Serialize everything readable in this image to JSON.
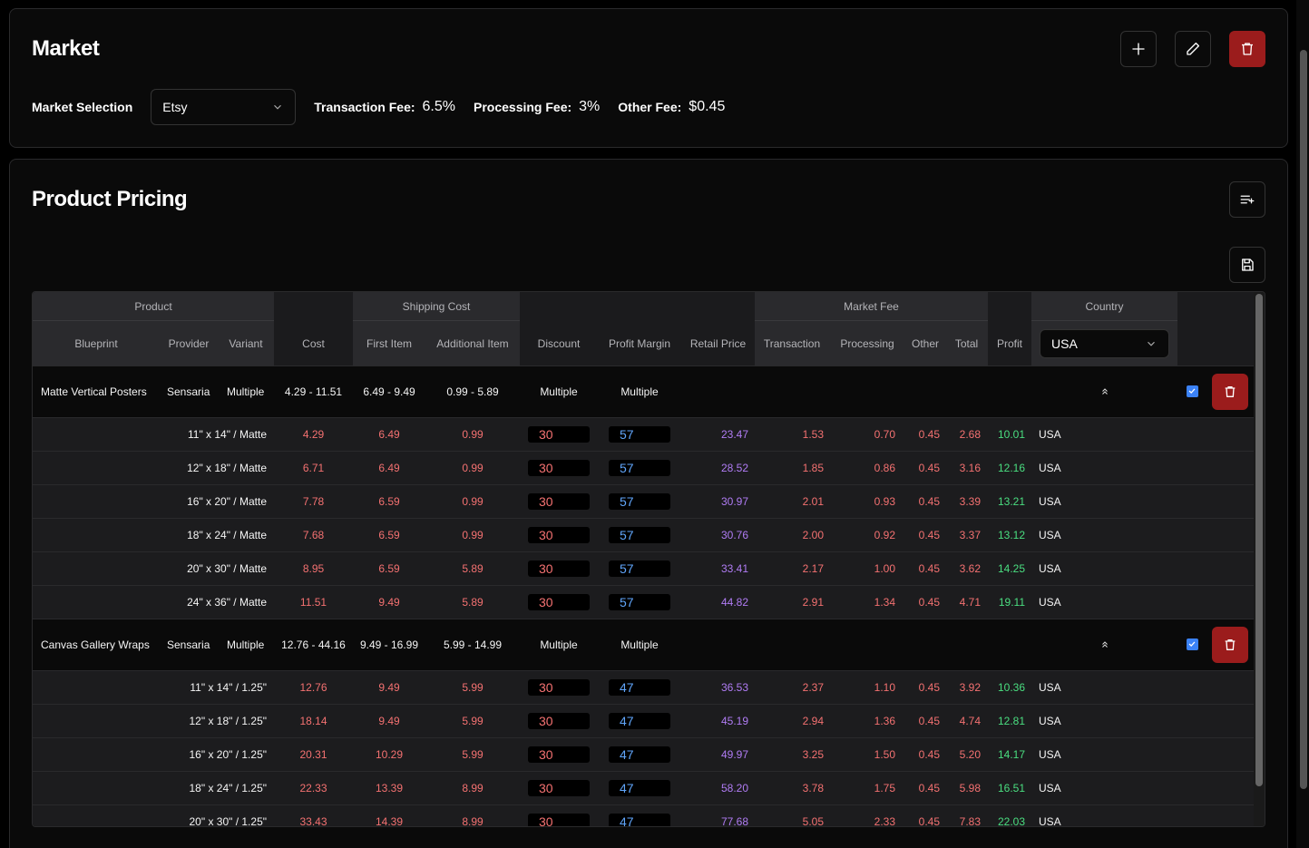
{
  "market": {
    "title": "Market",
    "selection_label": "Market Selection",
    "selection_value": "Etsy",
    "transaction_fee_label": "Transaction Fee:",
    "transaction_fee_value": "6.5%",
    "processing_fee_label": "Processing Fee:",
    "processing_fee_value": "3%",
    "other_fee_label": "Other Fee:",
    "other_fee_value": "$0.45",
    "icons": [
      "plus-icon",
      "pencil-icon",
      "trash-icon"
    ]
  },
  "pricing": {
    "title": "Product Pricing",
    "icons": [
      "list-add-icon",
      "save-icon"
    ],
    "header_groups": {
      "product": "Product",
      "shipping": "Shipping Cost",
      "market_fee": "Market Fee",
      "country": "Country"
    },
    "columns": {
      "blueprint": "Blueprint",
      "provider": "Provider",
      "variant": "Variant",
      "cost": "Cost",
      "first_item": "First Item",
      "additional_item": "Additional Item",
      "discount": "Discount",
      "profit_margin": "Profit Margin",
      "retail_price": "Retail Price",
      "transaction": "Transaction",
      "processing": "Processing",
      "other": "Other",
      "total": "Total",
      "profit": "Profit"
    },
    "country_select": "USA",
    "groups": [
      {
        "blueprint": "Matte Vertical Posters",
        "provider": "Sensaria",
        "variant": "Multiple",
        "cost": "4.29 - 11.51",
        "first_item": "6.49 - 9.49",
        "additional_item": "0.99 - 5.89",
        "discount": "Multiple",
        "profit_margin": "Multiple",
        "checked": true,
        "rows": [
          {
            "variant": "11\" x 14\" / Matte",
            "cost": "4.29",
            "first": "6.49",
            "additional": "0.99",
            "discount": "30",
            "margin": "57",
            "retail": "23.47",
            "transaction": "1.53",
            "processing": "0.70",
            "other": "0.45",
            "total": "2.68",
            "profit": "10.01",
            "country": "USA"
          },
          {
            "variant": "12\" x 18\" / Matte",
            "cost": "6.71",
            "first": "6.49",
            "additional": "0.99",
            "discount": "30",
            "margin": "57",
            "retail": "28.52",
            "transaction": "1.85",
            "processing": "0.86",
            "other": "0.45",
            "total": "3.16",
            "profit": "12.16",
            "country": "USA"
          },
          {
            "variant": "16\" x 20\" / Matte",
            "cost": "7.78",
            "first": "6.59",
            "additional": "0.99",
            "discount": "30",
            "margin": "57",
            "retail": "30.97",
            "transaction": "2.01",
            "processing": "0.93",
            "other": "0.45",
            "total": "3.39",
            "profit": "13.21",
            "country": "USA"
          },
          {
            "variant": "18\" x 24\" / Matte",
            "cost": "7.68",
            "first": "6.59",
            "additional": "0.99",
            "discount": "30",
            "margin": "57",
            "retail": "30.76",
            "transaction": "2.00",
            "processing": "0.92",
            "other": "0.45",
            "total": "3.37",
            "profit": "13.12",
            "country": "USA"
          },
          {
            "variant": "20\" x 30\" / Matte",
            "cost": "8.95",
            "first": "6.59",
            "additional": "5.89",
            "discount": "30",
            "margin": "57",
            "retail": "33.41",
            "transaction": "2.17",
            "processing": "1.00",
            "other": "0.45",
            "total": "3.62",
            "profit": "14.25",
            "country": "USA"
          },
          {
            "variant": "24\" x 36\" / Matte",
            "cost": "11.51",
            "first": "9.49",
            "additional": "5.89",
            "discount": "30",
            "margin": "57",
            "retail": "44.82",
            "transaction": "2.91",
            "processing": "1.34",
            "other": "0.45",
            "total": "4.71",
            "profit": "19.11",
            "country": "USA"
          }
        ]
      },
      {
        "blueprint": "Canvas Gallery Wraps",
        "provider": "Sensaria",
        "variant": "Multiple",
        "cost": "12.76 - 44.16",
        "first_item": "9.49 - 16.99",
        "additional_item": "5.99 - 14.99",
        "discount": "Multiple",
        "profit_margin": "Multiple",
        "checked": true,
        "rows": [
          {
            "variant": "11\" x 14\" / 1.25\"",
            "cost": "12.76",
            "first": "9.49",
            "additional": "5.99",
            "discount": "30",
            "margin": "47",
            "retail": "36.53",
            "transaction": "2.37",
            "processing": "1.10",
            "other": "0.45",
            "total": "3.92",
            "profit": "10.36",
            "country": "USA"
          },
          {
            "variant": "12\" x 18\" / 1.25\"",
            "cost": "18.14",
            "first": "9.49",
            "additional": "5.99",
            "discount": "30",
            "margin": "47",
            "retail": "45.19",
            "transaction": "2.94",
            "processing": "1.36",
            "other": "0.45",
            "total": "4.74",
            "profit": "12.81",
            "country": "USA"
          },
          {
            "variant": "16\" x 20\" / 1.25\"",
            "cost": "20.31",
            "first": "10.29",
            "additional": "5.99",
            "discount": "30",
            "margin": "47",
            "retail": "49.97",
            "transaction": "3.25",
            "processing": "1.50",
            "other": "0.45",
            "total": "5.20",
            "profit": "14.17",
            "country": "USA"
          },
          {
            "variant": "18\" x 24\" / 1.25\"",
            "cost": "22.33",
            "first": "13.39",
            "additional": "8.99",
            "discount": "30",
            "margin": "47",
            "retail": "58.20",
            "transaction": "3.78",
            "processing": "1.75",
            "other": "0.45",
            "total": "5.98",
            "profit": "16.51",
            "country": "USA"
          },
          {
            "variant": "20\" x 30\" / 1.25\"",
            "cost": "33.43",
            "first": "14.39",
            "additional": "8.99",
            "discount": "30",
            "margin": "47",
            "retail": "77.68",
            "transaction": "5.05",
            "processing": "2.33",
            "other": "0.45",
            "total": "7.83",
            "profit": "22.03",
            "country": "USA"
          }
        ]
      }
    ]
  },
  "colors": {
    "danger": "#9b1c1c",
    "red_text": "#f47171",
    "purple_text": "#b07cf4",
    "green_text": "#4ade80",
    "blue_text": "#60a5fa",
    "checkbox": "#3b82f6"
  }
}
